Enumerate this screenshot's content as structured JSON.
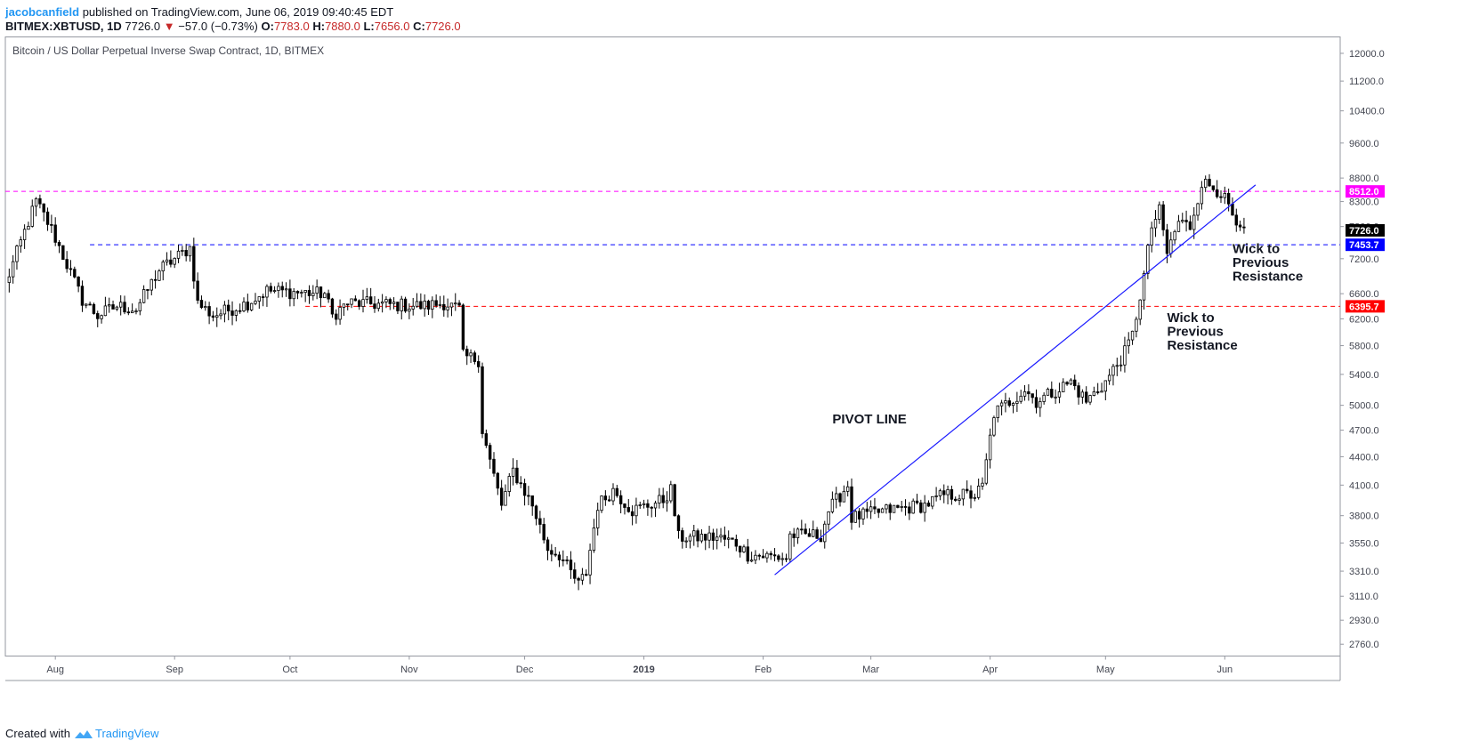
{
  "header": {
    "author": "jacobcanfield",
    "published": " published on TradingView.com, June 06, 2019 09:40:45 EDT",
    "symbol": "BITMEX:XBTUSD, 1D",
    "last": "7726.0",
    "arrow": "▼",
    "change": "−57.0 (−0.73%)",
    "o_label": "O:",
    "o_value": "7783.0",
    "h_label": "H:",
    "h_value": "7880.0",
    "l_label": "L:",
    "l_value": "7656.0",
    "c_label": "C:",
    "c_value": "7726.0"
  },
  "footer": {
    "created_with": "Created with",
    "brand": "TradingView"
  },
  "colors": {
    "magenta": "#ff00ff",
    "blue": "#0000ff",
    "red": "#ff0000",
    "pivot": "#1a1aff",
    "text_red": "#c62828"
  },
  "chart_data": {
    "type": "candlestick",
    "title": "Bitcoin / US Dollar Perpetual Inverse Swap Contract, 1D, BITMEX",
    "scale": "log",
    "ylim": [
      2680,
      12500
    ],
    "y_ticks": [
      "12000.0",
      "11200.0",
      "10400.0",
      "9600.0",
      "8800.0",
      "8300.0",
      "7800.0",
      "7200.0",
      "6600.0",
      "6200.0",
      "5800.0",
      "5400.0",
      "5000.0",
      "4700.0",
      "4400.0",
      "4100.0",
      "3800.0",
      "3550.0",
      "3310.0",
      "3110.0",
      "2930.0",
      "2760.0"
    ],
    "x_range": [
      "2018-07-19",
      "2019-07-01"
    ],
    "x_ticks": [
      {
        "date": "2018-08-01",
        "label": "Aug",
        "bold": false
      },
      {
        "date": "2018-09-01",
        "label": "Sep",
        "bold": false
      },
      {
        "date": "2018-10-01",
        "label": "Oct",
        "bold": false
      },
      {
        "date": "2018-11-01",
        "label": "Nov",
        "bold": false
      },
      {
        "date": "2018-12-01",
        "label": "Dec",
        "bold": false
      },
      {
        "date": "2019-01-01",
        "label": "2019",
        "bold": true
      },
      {
        "date": "2019-02-01",
        "label": "Feb",
        "bold": false
      },
      {
        "date": "2019-03-01",
        "label": "Mar",
        "bold": false
      },
      {
        "date": "2019-04-01",
        "label": "Apr",
        "bold": false
      },
      {
        "date": "2019-05-01",
        "label": "May",
        "bold": false
      },
      {
        "date": "2019-06-01",
        "label": "Jun",
        "bold": false
      }
    ],
    "horizontal_lines": [
      {
        "value": 8512.0,
        "label": "8512.0",
        "color": "#ff00ff",
        "start": "2018-07-19"
      },
      {
        "value": 7453.7,
        "label": "7453.7",
        "color": "#0000ff",
        "start": "2018-08-10"
      },
      {
        "value": 6395.7,
        "label": "6395.7",
        "color": "#ff0000",
        "start": "2018-10-05"
      }
    ],
    "last_price": {
      "value": 7726.0,
      "label": "7726.0"
    },
    "trend_line": {
      "start": [
        "2019-02-04",
        3280
      ],
      "end": [
        "2019-06-09",
        8650
      ],
      "color": "#1a1aff"
    },
    "annotations": [
      {
        "text": "PIVOT LINE",
        "date": "2019-02-19",
        "value": 4780
      },
      {
        "text": "Wick to\nPrevious\nResistance",
        "date": "2019-05-17",
        "value": 6150
      },
      {
        "text": "Wick to\nPrevious\nResistance",
        "date": "2019-06-03",
        "value": 7300
      }
    ],
    "anchors": [
      [
        "2018-07-19",
        6750
      ],
      [
        "2018-07-24",
        7700
      ],
      [
        "2018-07-27",
        8300
      ],
      [
        "2018-07-31",
        7750
      ],
      [
        "2018-08-08",
        6500
      ],
      [
        "2018-08-12",
        6250
      ],
      [
        "2018-08-17",
        6400
      ],
      [
        "2018-08-22",
        6350
      ],
      [
        "2018-08-28",
        7000
      ],
      [
        "2018-09-03",
        7300
      ],
      [
        "2018-09-05",
        7400
      ],
      [
        "2018-09-07",
        6450
      ],
      [
        "2018-09-11",
        6250
      ],
      [
        "2018-09-20",
        6450
      ],
      [
        "2018-09-25",
        6650
      ],
      [
        "2018-10-10",
        6600
      ],
      [
        "2018-10-12",
        6250
      ],
      [
        "2018-10-16",
        6450
      ],
      [
        "2018-11-05",
        6400
      ],
      [
        "2018-11-10",
        6450
      ],
      [
        "2018-11-14",
        6350
      ],
      [
        "2018-11-15",
        5650
      ],
      [
        "2018-11-19",
        5600
      ],
      [
        "2018-11-20",
        4700
      ],
      [
        "2018-11-22",
        4350
      ],
      [
        "2018-11-25",
        3900
      ],
      [
        "2018-11-28",
        4250
      ],
      [
        "2018-12-03",
        3900
      ],
      [
        "2018-12-07",
        3500
      ],
      [
        "2018-12-10",
        3450
      ],
      [
        "2018-12-15",
        3200
      ],
      [
        "2018-12-17",
        3300
      ],
      [
        "2018-12-20",
        3900
      ],
      [
        "2018-12-24",
        4050
      ],
      [
        "2018-12-29",
        3850
      ],
      [
        "2019-01-06",
        3950
      ],
      [
        "2019-01-08",
        4050
      ],
      [
        "2019-01-10",
        3600
      ],
      [
        "2019-01-20",
        3600
      ],
      [
        "2019-01-25",
        3550
      ],
      [
        "2019-01-28",
        3450
      ],
      [
        "2019-02-07",
        3420
      ],
      [
        "2019-02-08",
        3620
      ],
      [
        "2019-02-16",
        3620
      ],
      [
        "2019-02-18",
        3850
      ],
      [
        "2019-02-23",
        4100
      ],
      [
        "2019-02-24",
        3780
      ],
      [
        "2019-03-05",
        3850
      ],
      [
        "2019-03-15",
        3900
      ],
      [
        "2019-03-20",
        4000
      ],
      [
        "2019-03-28",
        4000
      ],
      [
        "2019-03-30",
        4080
      ],
      [
        "2019-04-02",
        4900
      ],
      [
        "2019-04-10",
        5200
      ],
      [
        "2019-04-13",
        5050
      ],
      [
        "2019-04-22",
        5300
      ],
      [
        "2019-04-26",
        5050
      ],
      [
        "2019-05-01",
        5300
      ],
      [
        "2019-05-06",
        5700
      ],
      [
        "2019-05-08",
        5950
      ],
      [
        "2019-05-11",
        6900
      ],
      [
        "2019-05-13",
        7800
      ],
      [
        "2019-05-15",
        8100
      ],
      [
        "2019-05-17",
        7300
      ],
      [
        "2019-05-20",
        7900
      ],
      [
        "2019-05-23",
        7800
      ],
      [
        "2019-05-26",
        8700
      ],
      [
        "2019-05-29",
        8600
      ],
      [
        "2019-05-31",
        8500
      ],
      [
        "2019-06-03",
        8000
      ],
      [
        "2019-06-04",
        7700
      ],
      [
        "2019-06-06",
        7726
      ]
    ]
  }
}
